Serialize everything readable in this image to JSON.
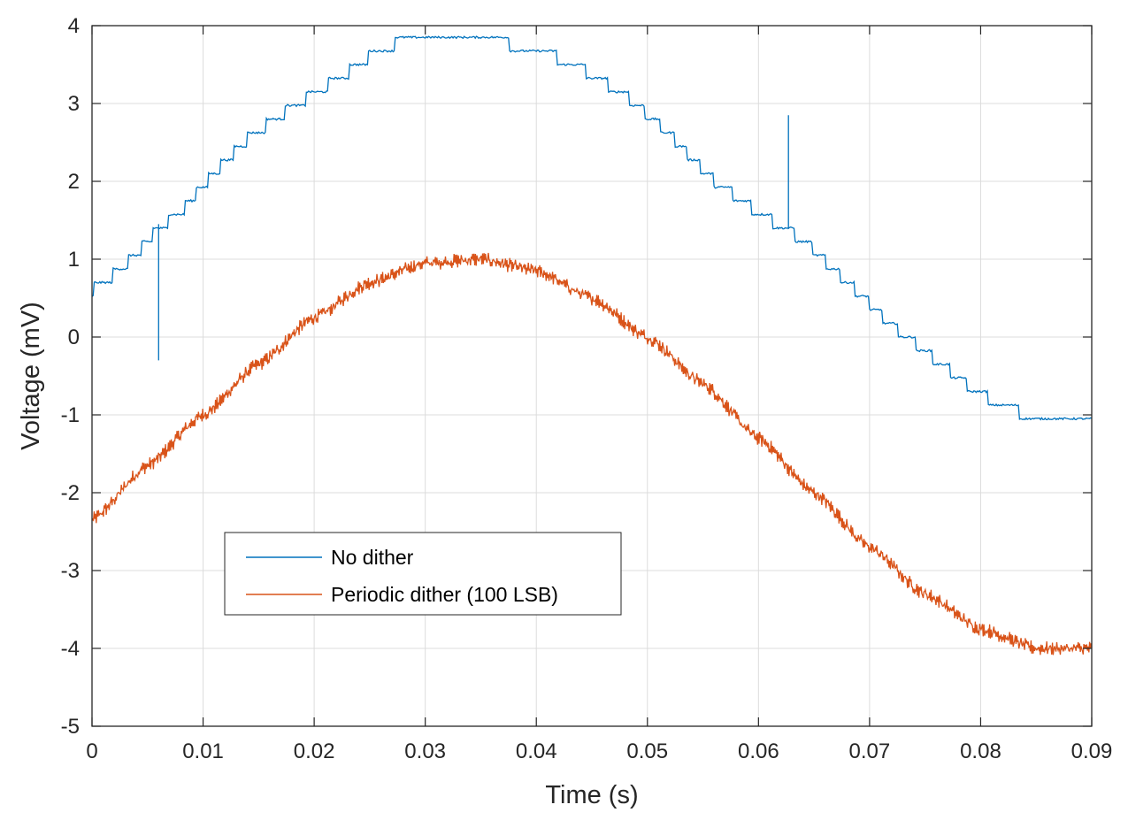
{
  "chart_data": {
    "type": "line",
    "xlabel": "Time (s)",
    "ylabel": "Voltage (mV)",
    "xlim": [
      0,
      0.09
    ],
    "ylim": [
      -5,
      4
    ],
    "xticks": [
      "0",
      "0.01",
      "0.02",
      "0.03",
      "0.04",
      "0.05",
      "0.06",
      "0.07",
      "0.08",
      "0.09"
    ],
    "yticks": [
      "-5",
      "-4",
      "-3",
      "-2",
      "-1",
      "0",
      "1",
      "2",
      "3",
      "4"
    ],
    "grid": true,
    "legend_position": "lower-left",
    "series": [
      {
        "name": "No dither",
        "color": "#0072bd",
        "style": "staircase",
        "x": [
          0,
          0.002,
          0.004,
          0.006,
          0.008,
          0.01,
          0.014,
          0.018,
          0.022,
          0.026,
          0.029,
          0.034,
          0.04,
          0.044,
          0.048,
          0.052,
          0.056,
          0.06,
          0.064,
          0.068,
          0.072,
          0.076,
          0.08,
          0.084,
          0.09
        ],
        "y": [
          0.6,
          0.8,
          1.05,
          1.4,
          1.6,
          1.95,
          2.55,
          2.95,
          3.3,
          3.7,
          3.85,
          3.85,
          3.7,
          3.45,
          3.1,
          2.6,
          2.0,
          1.6,
          1.25,
          0.7,
          0.15,
          -0.3,
          -0.75,
          -1.0,
          -1.0
        ],
        "spikes": [
          {
            "x": 0.006,
            "min": -0.3,
            "max": 1.45
          },
          {
            "x": 0.0627,
            "min": 1.4,
            "max": 2.85
          }
        ]
      },
      {
        "name": "Periodic dither (100 LSB)",
        "color": "#d95319",
        "style": "noisy",
        "x": [
          0,
          0.005,
          0.01,
          0.015,
          0.02,
          0.025,
          0.03,
          0.035,
          0.04,
          0.045,
          0.05,
          0.055,
          0.06,
          0.065,
          0.07,
          0.075,
          0.08,
          0.085,
          0.09
        ],
        "y": [
          -2.35,
          -1.65,
          -1.0,
          -0.35,
          0.25,
          0.7,
          0.95,
          1.0,
          0.85,
          0.5,
          0.0,
          -0.6,
          -1.3,
          -2.0,
          -2.7,
          -3.3,
          -3.75,
          -4.0,
          -4.0
        ]
      }
    ]
  }
}
